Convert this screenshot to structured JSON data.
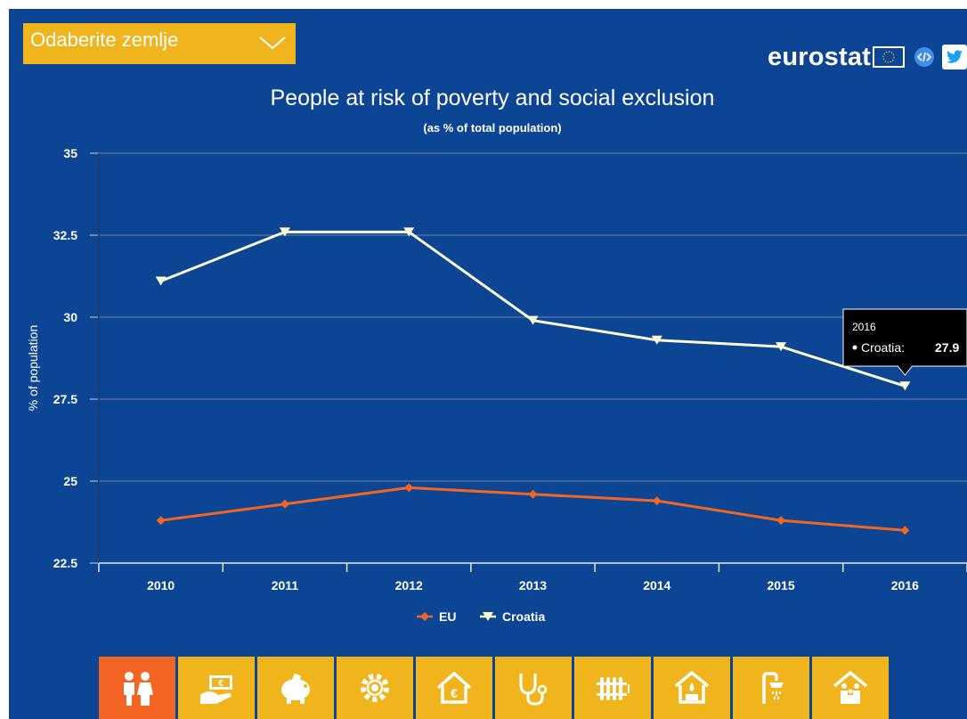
{
  "header": {
    "dropdown_label": "Odaberite zemlje",
    "logo_text": "eurostat"
  },
  "chart_data": {
    "type": "line",
    "title": "People at risk of poverty and social exclusion",
    "subtitle": "(as % of total population)",
    "ylabel": "% of population",
    "xlabel": "",
    "categories": [
      "2010",
      "2011",
      "2012",
      "2013",
      "2014",
      "2015",
      "2016"
    ],
    "ylim": [
      22.5,
      35
    ],
    "yticks": [
      "22.5",
      "25",
      "27.5",
      "30",
      "32.5",
      "35"
    ],
    "ytick_values": [
      22.5,
      25,
      27.5,
      30,
      32.5,
      35
    ],
    "grid": true,
    "legend_position": "bottom",
    "series": [
      {
        "name": "EU",
        "color": "#f26522",
        "marker": "diamond",
        "values": [
          23.8,
          24.3,
          24.8,
          24.6,
          24.4,
          23.8,
          23.5
        ]
      },
      {
        "name": "Croatia",
        "color": "#fefcd7",
        "marker": "triangle-down",
        "values": [
          31.1,
          32.6,
          32.6,
          29.9,
          29.3,
          29.1,
          27.9
        ]
      }
    ],
    "tooltip": {
      "year": "2016",
      "series": "Croatia",
      "text": "Croatia: ",
      "value": "27.9"
    }
  },
  "colors": {
    "background": "#0c4593",
    "accent": "#f0b41c",
    "active": "#f26522"
  },
  "icon_bar": [
    {
      "icon": "people-icon",
      "active": true
    },
    {
      "icon": "money-hand-icon",
      "active": false
    },
    {
      "icon": "piggy-bank-icon",
      "active": false
    },
    {
      "icon": "gear-icon",
      "active": false
    },
    {
      "icon": "house-euro-icon",
      "active": false
    },
    {
      "icon": "stethoscope-icon",
      "active": false
    },
    {
      "icon": "radiator-icon",
      "active": false
    },
    {
      "icon": "house-leak-icon",
      "active": false
    },
    {
      "icon": "shower-icon",
      "active": false
    },
    {
      "icon": "family-house-icon",
      "active": false
    }
  ]
}
